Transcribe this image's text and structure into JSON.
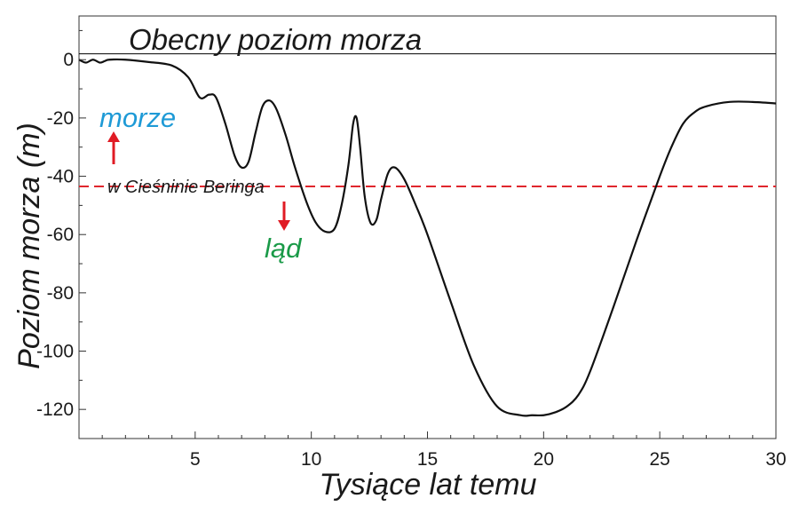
{
  "chart_data": {
    "type": "line",
    "title": "",
    "xlabel": "Tysiące lat temu",
    "ylabel": "Poziom morza (m)",
    "xlim": [
      0,
      30
    ],
    "ylim": [
      -130,
      15
    ],
    "x_ticks": [
      5,
      10,
      15,
      20,
      25,
      30
    ],
    "y_ticks": [
      0,
      -20,
      -40,
      -60,
      -80,
      -100,
      -120
    ],
    "grid": false,
    "series": [
      {
        "name": "",
        "color": "#111111",
        "x": [
          0,
          0.3,
          0.6,
          0.9,
          1.1,
          1.3,
          2,
          3,
          4,
          4.7,
          5.2,
          5.6,
          5.9,
          6.3,
          6.7,
          7.0,
          7.3,
          7.6,
          7.9,
          8.2,
          8.5,
          8.9,
          9.3,
          9.8,
          10.2,
          10.6,
          11.0,
          11.3,
          11.6,
          11.8,
          11.95,
          12.1,
          12.3,
          12.55,
          12.8,
          13.0,
          13.3,
          13.6,
          14.0,
          14.5,
          15,
          16,
          17,
          18,
          19,
          19.5,
          20,
          20.5,
          21,
          21.5,
          22,
          23,
          24,
          25,
          25.5,
          26,
          26.5,
          27,
          28,
          29,
          30
        ],
        "y": [
          0,
          -1,
          0,
          -1,
          -0.5,
          0,
          0,
          -0.8,
          -2,
          -6,
          -13,
          -12,
          -13,
          -22,
          -33,
          -37,
          -35,
          -25,
          -16,
          -14,
          -17,
          -26,
          -37,
          -49,
          -56,
          -59,
          -58,
          -50,
          -36,
          -22,
          -20,
          -30,
          -47,
          -56,
          -55,
          -48,
          -39,
          -37,
          -41,
          -50,
          -60,
          -83,
          -105,
          -119,
          -122,
          -122,
          -122,
          -121,
          -119,
          -115,
          -107,
          -85,
          -62,
          -40,
          -30,
          -22,
          -18,
          -16,
          -14.5,
          -14.5,
          -15
        ]
      }
    ],
    "reference_lines": [
      {
        "orientation": "horizontal",
        "y": 2,
        "color": "#000000",
        "label": "Obecny poziom morza"
      },
      {
        "orientation": "horizontal",
        "y": -43.5,
        "color": "#e0262d",
        "style": "dashed",
        "label": "w Cieśninie Beringa"
      }
    ],
    "annotations": [
      {
        "text": "morze",
        "color": "#1e9ad6",
        "arrow": "up",
        "at_x": 1.5,
        "at_y": -20
      },
      {
        "text": "ląd",
        "color": "#1a9a48",
        "arrow": "down",
        "at_x": 9,
        "at_y": -65
      }
    ],
    "legend": "none"
  }
}
